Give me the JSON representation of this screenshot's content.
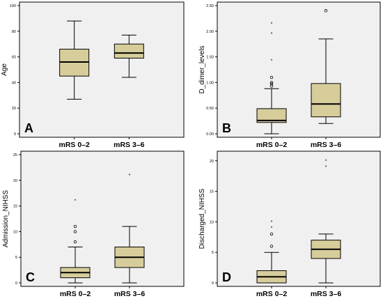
{
  "chart_data": [
    {
      "panel_label": "A",
      "type": "boxplot",
      "ylabel": "Age",
      "ylim": [
        0,
        100
      ],
      "yticks": [
        "0",
        "20",
        "40",
        "60",
        "80",
        "100"
      ],
      "grid": false,
      "categories": [
        "mRS 0–2",
        "mRS 3–6"
      ],
      "boxes": [
        {
          "category": "mRS 0–2",
          "whisker_low": 27,
          "q1": 45,
          "median": 56,
          "q3": 66,
          "whisker_high": 88,
          "outliers": [],
          "extremes": []
        },
        {
          "category": "mRS 3–6",
          "whisker_low": 44,
          "q1": 59,
          "median": 63,
          "q3": 70,
          "whisker_high": 77,
          "outliers": [],
          "extremes": []
        }
      ]
    },
    {
      "panel_label": "B",
      "type": "boxplot",
      "ylabel": "D_dimer_levels",
      "ylim": [
        0,
        2.5
      ],
      "yticks": [
        "0.00",
        "0.50",
        "1.00",
        "1.50",
        "2.00",
        "2.50"
      ],
      "grid": false,
      "categories": [
        "mRS 0–2",
        "mRS 3–6"
      ],
      "boxes": [
        {
          "category": "mRS 0–2",
          "whisker_low": 0.0,
          "q1": 0.22,
          "median": 0.26,
          "q3": 0.49,
          "whisker_high": 0.88,
          "outliers": [
            0.93,
            0.97,
            1.0,
            1.1
          ],
          "extremes": [
            1.43,
            1.95,
            2.15
          ]
        },
        {
          "category": "mRS 3–6",
          "whisker_low": 0.2,
          "q1": 0.33,
          "median": 0.58,
          "q3": 0.98,
          "whisker_high": 1.85,
          "outliers": [
            2.4
          ],
          "extremes": []
        }
      ]
    },
    {
      "panel_label": "C",
      "type": "boxplot",
      "ylabel": "Admission_NIHSS",
      "ylim": [
        0,
        25
      ],
      "yticks": [
        "0",
        "5",
        "10",
        "15",
        "20",
        "25"
      ],
      "grid": false,
      "categories": [
        "mRS 0–2",
        "mRS 3–6"
      ],
      "boxes": [
        {
          "category": "mRS 0–2",
          "whisker_low": 0,
          "q1": 1,
          "median": 2,
          "q3": 3,
          "whisker_high": 7,
          "outliers": [
            8,
            10,
            11
          ],
          "extremes": [
            16
          ]
        },
        {
          "category": "mRS 3–6",
          "whisker_low": 0,
          "q1": 3,
          "median": 5,
          "q3": 7,
          "whisker_high": 11,
          "outliers": [],
          "extremes": [
            21
          ]
        }
      ]
    },
    {
      "panel_label": "D",
      "type": "boxplot",
      "ylabel": "Discharged_NIHSS",
      "ylim": [
        0,
        21
      ],
      "yticks": [
        "0",
        "5",
        "10",
        "15",
        "20"
      ],
      "grid": false,
      "categories": [
        "mRS 0–2",
        "mRS 3–6"
      ],
      "boxes": [
        {
          "category": "mRS 0–2",
          "whisker_low": 0,
          "q1": 0,
          "median": 1,
          "q3": 2,
          "whisker_high": 5,
          "outliers": [
            6,
            8
          ],
          "extremes": [
            9,
            10
          ]
        },
        {
          "category": "mRS 3–6",
          "whisker_low": 0,
          "q1": 4,
          "median": 5.5,
          "q3": 7,
          "whisker_high": 8,
          "outliers": [],
          "extremes": [
            19,
            20
          ]
        }
      ]
    }
  ],
  "colors": {
    "box_fill": "#d7cd9a",
    "panel_background": "#f0f0f0",
    "stroke": "#000000"
  }
}
